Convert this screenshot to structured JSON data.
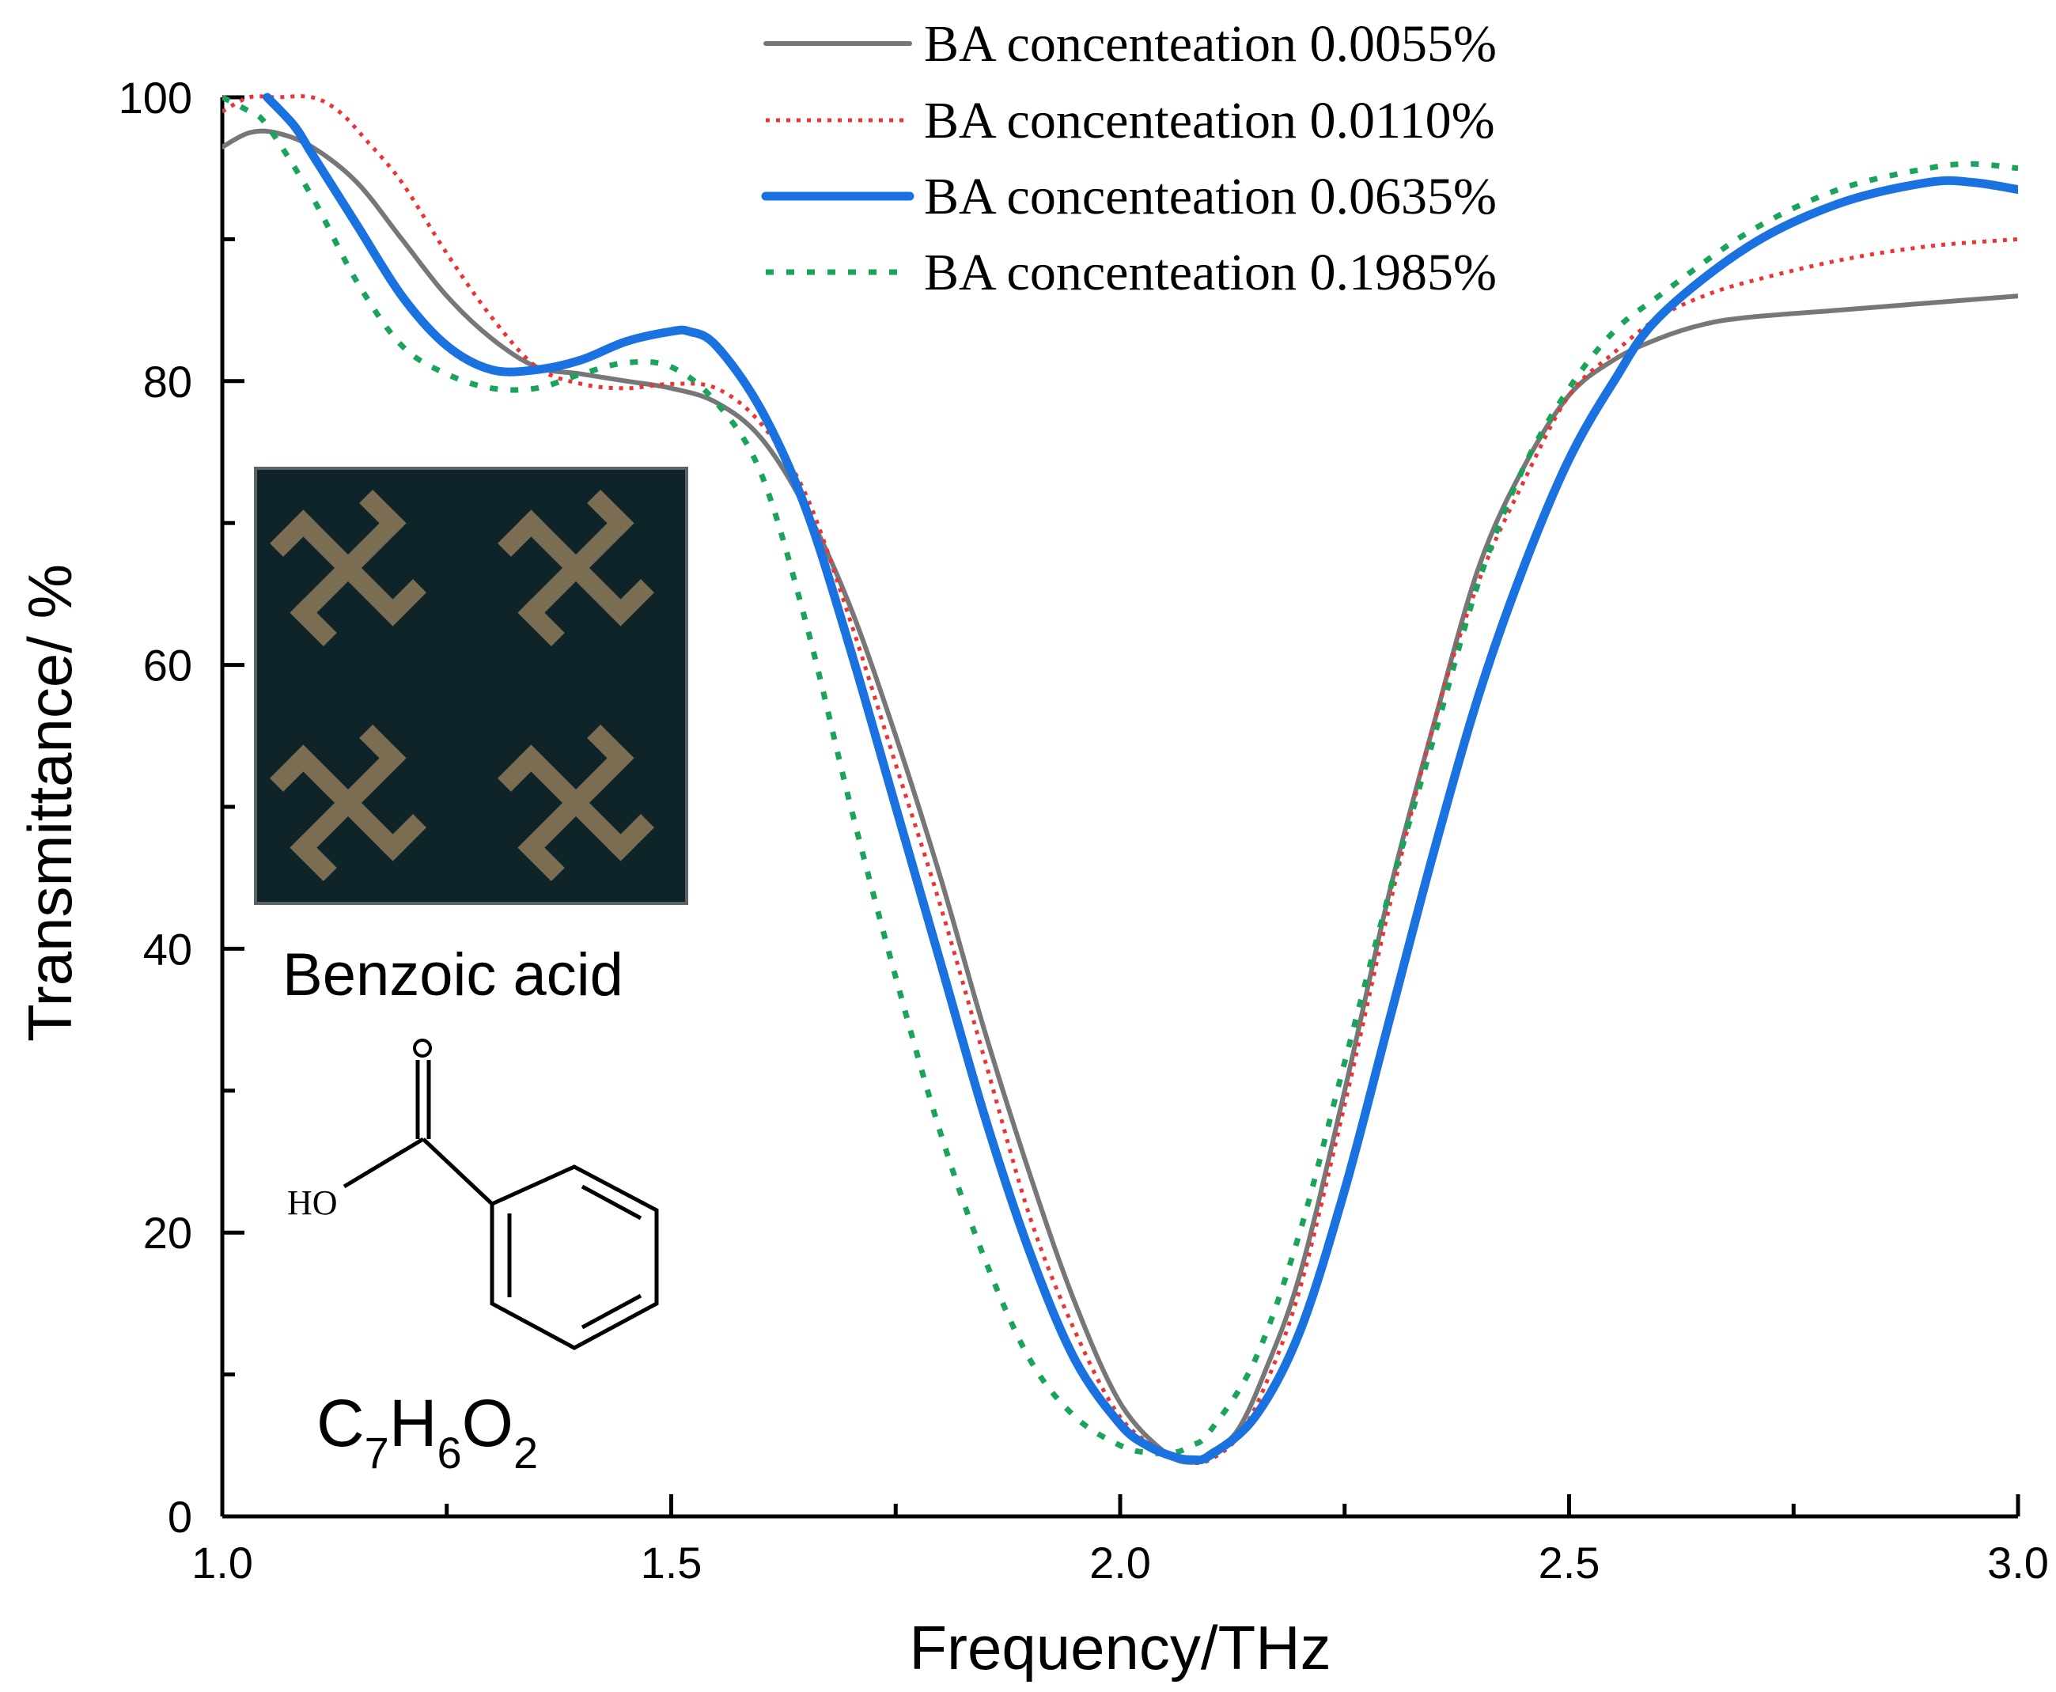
{
  "chart_data": {
    "type": "line",
    "xlabel": "Frequency/THz",
    "ylabel": "Transmittance/ %",
    "xlim": [
      1.0,
      3.0
    ],
    "ylim": [
      0,
      100
    ],
    "x_ticks": [
      1.0,
      1.5,
      2.0,
      2.5,
      3.0
    ],
    "x_tick_labels": [
      "1.0",
      "1.5",
      "2.0",
      "2.5",
      "3.0"
    ],
    "x_minor_ticks": [
      1.25,
      1.75,
      2.25,
      2.75
    ],
    "y_ticks": [
      0,
      20,
      40,
      60,
      80,
      100
    ],
    "y_tick_labels": [
      "0",
      "20",
      "40",
      "60",
      "80",
      "100"
    ],
    "y_minor_ticks": [
      10,
      30,
      50,
      70,
      90
    ],
    "grid": false,
    "legend_position": "top-right",
    "series": [
      {
        "name": "BA concenteation 0.0055%",
        "color": "#777777",
        "style": "solid",
        "x": [
          1.0,
          1.03,
          1.06,
          1.1,
          1.15,
          1.2,
          1.25,
          1.3,
          1.35,
          1.4,
          1.45,
          1.5,
          1.55,
          1.6,
          1.65,
          1.7,
          1.75,
          1.8,
          1.85,
          1.9,
          1.95,
          2.0,
          2.05,
          2.08,
          2.1,
          2.13,
          2.16,
          2.2,
          2.25,
          2.3,
          2.35,
          2.4,
          2.45,
          2.5,
          2.55,
          2.6,
          2.65,
          2.7,
          2.8,
          2.9,
          3.0
        ],
        "y": [
          96.5,
          97.5,
          97.5,
          96.5,
          94,
          90,
          86,
          83,
          81,
          80.5,
          80,
          79.5,
          78.5,
          76,
          71,
          64,
          55,
          45,
          34,
          24,
          15,
          8,
          4.5,
          3.8,
          4.5,
          6,
          10,
          17,
          30,
          44,
          56,
          67,
          74,
          79,
          81.5,
          83,
          84,
          84.5,
          85,
          85.5,
          86
        ]
      },
      {
        "name": "BA concenteation 0.0110%",
        "color": "#ee3333",
        "style": "dotted",
        "x": [
          1.0,
          1.03,
          1.06,
          1.1,
          1.13,
          1.16,
          1.2,
          1.25,
          1.3,
          1.35,
          1.4,
          1.45,
          1.5,
          1.55,
          1.6,
          1.65,
          1.7,
          1.75,
          1.8,
          1.85,
          1.9,
          1.95,
          2.0,
          2.05,
          2.08,
          2.1,
          2.13,
          2.16,
          2.2,
          2.25,
          2.3,
          2.35,
          2.4,
          2.45,
          2.5,
          2.55,
          2.6,
          2.65,
          2.7,
          2.8,
          2.9,
          3.0
        ],
        "y": [
          99,
          100,
          100,
          100,
          99,
          97,
          94,
          89,
          84.5,
          81,
          79.8,
          79.5,
          79.8,
          79.5,
          77,
          72,
          63,
          53,
          43,
          32,
          21,
          13,
          7,
          4.5,
          3.8,
          4,
          5.5,
          9,
          16,
          29,
          43,
          56,
          66,
          73,
          79,
          82,
          84.5,
          86,
          87,
          88.5,
          89.5,
          90
        ]
      },
      {
        "name": "BA concenteation 0.0635%",
        "color": "#1a72e0",
        "style": "solid-thick",
        "x": [
          1.05,
          1.08,
          1.1,
          1.15,
          1.2,
          1.25,
          1.3,
          1.35,
          1.4,
          1.45,
          1.5,
          1.52,
          1.55,
          1.6,
          1.65,
          1.7,
          1.75,
          1.8,
          1.85,
          1.9,
          1.95,
          2.0,
          2.03,
          2.06,
          2.08,
          2.1,
          2.15,
          2.2,
          2.25,
          2.3,
          2.35,
          2.4,
          2.45,
          2.5,
          2.55,
          2.6,
          2.7,
          2.8,
          2.9,
          2.95,
          3.0
        ],
        "y": [
          100,
          98,
          96,
          91,
          86,
          82.5,
          80.8,
          80.8,
          81.5,
          82.8,
          83.5,
          83.5,
          82.5,
          78,
          71,
          61,
          50,
          39,
          28,
          18.5,
          11,
          6.5,
          5,
          4.2,
          4,
          4.3,
          7,
          13,
          23,
          35,
          47,
          58,
          67,
          74.5,
          80,
          84.5,
          89.5,
          92.5,
          94,
          94,
          93.5
        ]
      },
      {
        "name": "BA concenteation 0.1985%",
        "color": "#1aa35a",
        "style": "dotted",
        "x": [
          1.0,
          1.03,
          1.05,
          1.1,
          1.15,
          1.2,
          1.25,
          1.3,
          1.35,
          1.4,
          1.45,
          1.5,
          1.55,
          1.6,
          1.65,
          1.7,
          1.75,
          1.8,
          1.85,
          1.9,
          1.95,
          2.0,
          2.03,
          2.06,
          2.08,
          2.1,
          2.15,
          2.2,
          2.25,
          2.3,
          2.35,
          2.4,
          2.45,
          2.5,
          2.55,
          2.6,
          2.7,
          2.8,
          2.9,
          2.95,
          3.0
        ],
        "y": [
          100,
          99,
          98,
          93,
          87,
          82.5,
          80.5,
          79.5,
          79.5,
          80.5,
          81.3,
          81,
          78.5,
          73.5,
          63,
          50,
          38,
          27,
          18,
          11,
          7,
          5,
          4.5,
          4.5,
          5,
          6,
          11,
          20,
          32,
          44,
          55,
          66,
          74,
          79.5,
          83.5,
          86,
          90.5,
          93.5,
          95,
          95.3,
          95
        ]
      }
    ],
    "inset": {
      "label": "Benzoic acid",
      "structure_label": "HO",
      "formula_c": "C",
      "formula_c_sub": "7",
      "formula_h": "H",
      "formula_h_sub": "6",
      "formula_o": "O",
      "formula_o_sub": "2"
    }
  }
}
